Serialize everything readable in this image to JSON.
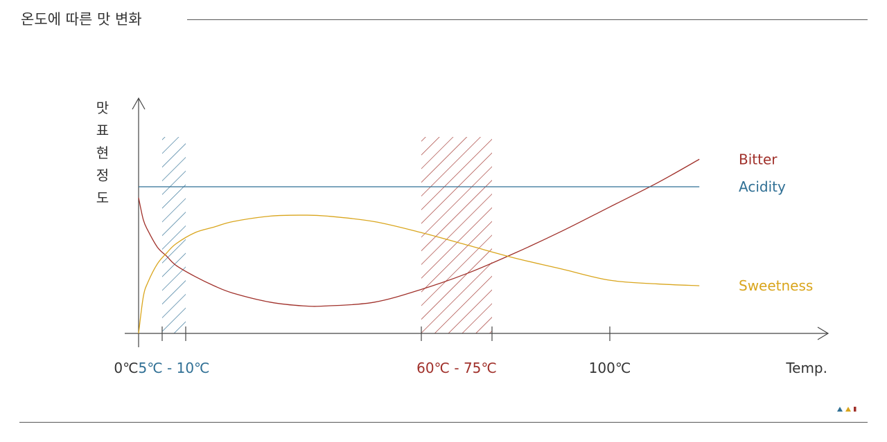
{
  "page": {
    "title": "온도에 따른 맛 변화"
  },
  "colors": {
    "bitter": "#a0302a",
    "acidity": "#2f6f94",
    "sweetness": "#d9a51c",
    "axis": "#444444",
    "text": "#333333"
  },
  "chart_data": {
    "type": "line",
    "title": "",
    "xlabel": "Temp.",
    "ylabel": "맛 표현 정도",
    "y_numeric_scale": false,
    "xlim": [
      0,
      120
    ],
    "ylim": [
      0,
      100
    ],
    "x_ticks": [
      {
        "value": 0,
        "label": "0℃",
        "color": "#333333"
      },
      {
        "value": 5,
        "label": "",
        "color": "#333333"
      },
      {
        "value": 10,
        "label": "",
        "color": "#333333"
      },
      {
        "value": 60,
        "label": "",
        "color": "#333333"
      },
      {
        "value": 75,
        "label": "",
        "color": "#333333"
      },
      {
        "value": 100,
        "label": "100℃",
        "color": "#333333"
      }
    ],
    "highlighted_ranges": [
      {
        "from": 5,
        "to": 10,
        "label": "5℃ - 10℃",
        "color": "#2f6f94",
        "pattern": "diagonal-hatch"
      },
      {
        "from": 60,
        "to": 75,
        "label": "60℃ - 75℃",
        "color": "#a0302a",
        "pattern": "diagonal-hatch"
      }
    ],
    "series": [
      {
        "name": "Bitter",
        "color": "#a0302a",
        "x": [
          0,
          1,
          2,
          4,
          6,
          8,
          12,
          16,
          20,
          28,
          35,
          40,
          50,
          60,
          70,
          80,
          90,
          100,
          110,
          119
        ],
        "y": [
          74,
          62,
          56,
          47,
          42,
          37,
          31,
          26,
          22,
          17,
          15,
          15,
          17,
          24,
          33,
          44,
          56,
          69,
          82,
          95
        ]
      },
      {
        "name": "Acidity",
        "color": "#2f6f94",
        "x": [
          0,
          119
        ],
        "y": [
          80,
          80
        ]
      },
      {
        "name": "Sweetness",
        "color": "#d9a51c",
        "x": [
          0,
          1,
          2,
          4,
          6,
          8,
          12,
          16,
          20,
          28,
          35,
          40,
          50,
          60,
          70,
          80,
          90,
          100,
          110,
          119
        ],
        "y": [
          0,
          20,
          28,
          38,
          44,
          49,
          55,
          58,
          61,
          64,
          64.5,
          64,
          61,
          55,
          48,
          41,
          35,
          29,
          27,
          26
        ]
      }
    ],
    "legend": "right, labels at line ends"
  }
}
